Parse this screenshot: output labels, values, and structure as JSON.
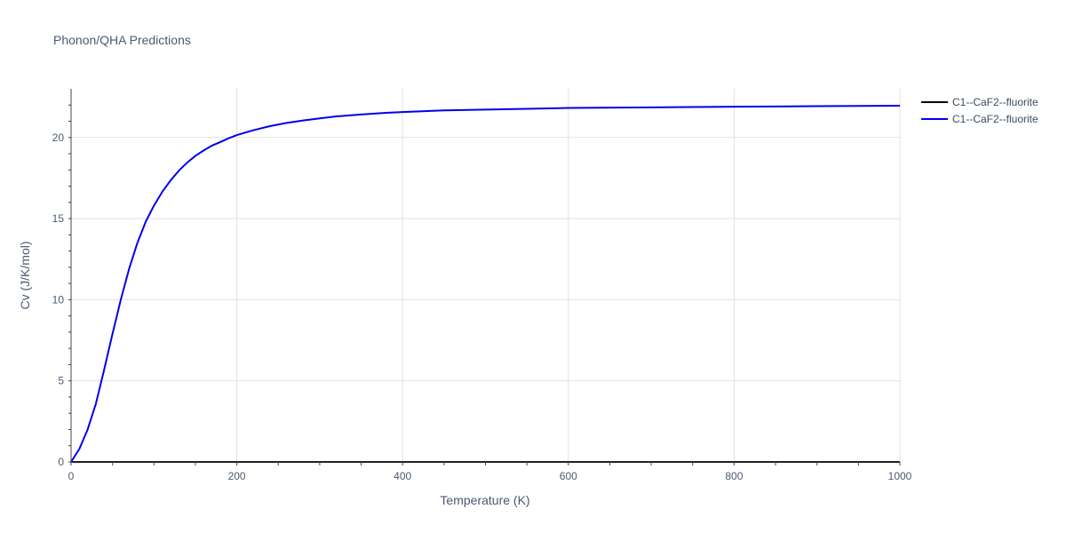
{
  "chart_data": {
    "type": "line",
    "title": "Phonon/QHA Predictions",
    "xlabel": "Temperature (K)",
    "ylabel": "Cv (J/K/mol)",
    "xlim": [
      0,
      1000
    ],
    "ylim": [
      0,
      23
    ],
    "xticks": [
      0,
      200,
      400,
      600,
      800,
      1000
    ],
    "yticks": [
      0,
      5,
      10,
      15,
      20
    ],
    "grid": true,
    "legend_position": "top-right",
    "series": [
      {
        "name": "C1--CaF2--fluorite",
        "color": "#000000",
        "x": [
          0,
          1000
        ],
        "y": [
          0,
          0
        ]
      },
      {
        "name": "C1--CaF2--fluorite",
        "color": "#0000ee",
        "x": [
          0,
          10,
          20,
          30,
          40,
          50,
          60,
          70,
          80,
          90,
          100,
          110,
          120,
          130,
          140,
          150,
          160,
          170,
          180,
          190,
          200,
          220,
          240,
          260,
          280,
          300,
          320,
          350,
          380,
          400,
          450,
          500,
          550,
          600,
          700,
          800,
          900,
          1000
        ],
        "y": [
          0,
          0.8,
          2.0,
          3.6,
          5.7,
          7.9,
          10.0,
          11.9,
          13.5,
          14.8,
          15.8,
          16.65,
          17.35,
          17.95,
          18.45,
          18.87,
          19.2,
          19.5,
          19.72,
          19.95,
          20.15,
          20.45,
          20.7,
          20.9,
          21.05,
          21.18,
          21.3,
          21.42,
          21.52,
          21.57,
          21.67,
          21.72,
          21.77,
          21.82,
          21.86,
          21.9,
          21.93,
          21.96
        ]
      }
    ]
  }
}
